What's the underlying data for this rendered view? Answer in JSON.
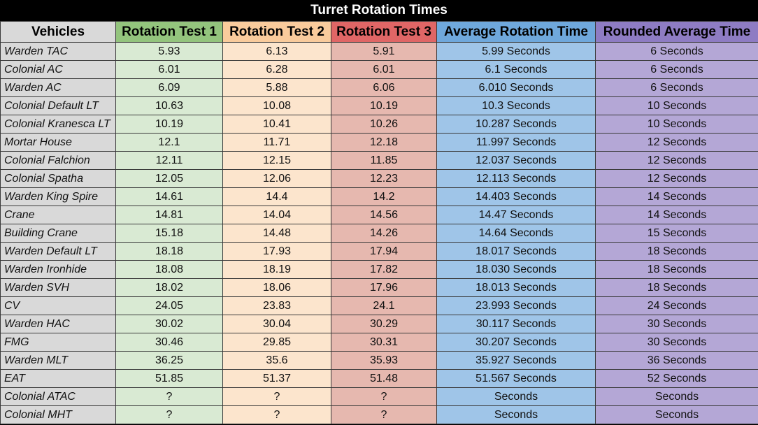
{
  "chart_data": {
    "type": "table",
    "title": "Turret Rotation Times",
    "columns": [
      "Vehicles",
      "Rotation Test 1",
      "Rotation Test 2",
      "Rotation Test 3",
      "Average Rotation Time",
      "Rounded Average Time"
    ],
    "colors": {
      "header": [
        "#d9d9d9",
        "#93c47d",
        "#f9cb9c",
        "#e06666",
        "#6fa8dc",
        "#8e7cc3"
      ],
      "body": [
        "#d9d9d9",
        "#d9ead3",
        "#fce5cd",
        "#e6b8af",
        "#9fc5e8",
        "#b4a7d6"
      ]
    },
    "rows": [
      [
        "Warden TAC",
        "5.93",
        "6.13",
        "5.91",
        "5.99 Seconds",
        "6 Seconds"
      ],
      [
        "Colonial AC",
        "6.01",
        "6.28",
        "6.01",
        "6.1 Seconds",
        "6 Seconds"
      ],
      [
        "Warden AC",
        "6.09",
        "5.88",
        "6.06",
        "6.010 Seconds",
        "6 Seconds"
      ],
      [
        "Colonial Default LT",
        "10.63",
        "10.08",
        "10.19",
        "10.3 Seconds",
        "10 Seconds"
      ],
      [
        "Colonial Kranesca LT",
        "10.19",
        "10.41",
        "10.26",
        "10.287 Seconds",
        "10 Seconds"
      ],
      [
        "Mortar House",
        "12.1",
        "11.71",
        "12.18",
        "11.997 Seconds",
        "12 Seconds"
      ],
      [
        "Colonial Falchion",
        "12.11",
        "12.15",
        "11.85",
        "12.037 Seconds",
        "12 Seconds"
      ],
      [
        "Colonial Spatha",
        "12.05",
        "12.06",
        "12.23",
        "12.113 Seconds",
        "12 Seconds"
      ],
      [
        "Warden King Spire",
        "14.61",
        "14.4",
        "14.2",
        "14.403 Seconds",
        "14 Seconds"
      ],
      [
        "Crane",
        "14.81",
        "14.04",
        "14.56",
        "14.47 Seconds",
        "14 Seconds"
      ],
      [
        "Building Crane",
        "15.18",
        "14.48",
        "14.26",
        "14.64 Seconds",
        "15 Seconds"
      ],
      [
        "Warden Default LT",
        "18.18",
        "17.93",
        "17.94",
        "18.017 Seconds",
        "18 Seconds"
      ],
      [
        "Warden Ironhide",
        "18.08",
        "18.19",
        "17.82",
        "18.030 Seconds",
        "18 Seconds"
      ],
      [
        "Warden SVH",
        "18.02",
        "18.06",
        "17.96",
        "18.013 Seconds",
        "18 Seconds"
      ],
      [
        "CV",
        "24.05",
        "23.83",
        "24.1",
        "23.993 Seconds",
        "24 Seconds"
      ],
      [
        "Warden HAC",
        "30.02",
        "30.04",
        "30.29",
        "30.117 Seconds",
        "30 Seconds"
      ],
      [
        "FMG",
        "30.46",
        "29.85",
        "30.31",
        "30.207 Seconds",
        "30 Seconds"
      ],
      [
        "Warden MLT",
        "36.25",
        "35.6",
        "35.93",
        "35.927 Seconds",
        "36 Seconds"
      ],
      [
        "EAT",
        "51.85",
        "51.37",
        "51.48",
        "51.567 Seconds",
        "52 Seconds"
      ],
      [
        "Colonial ATAC",
        "?",
        "?",
        "?",
        "Seconds",
        "Seconds"
      ],
      [
        "Colonial MHT",
        "?",
        "?",
        "?",
        "Seconds",
        "Seconds"
      ]
    ]
  }
}
